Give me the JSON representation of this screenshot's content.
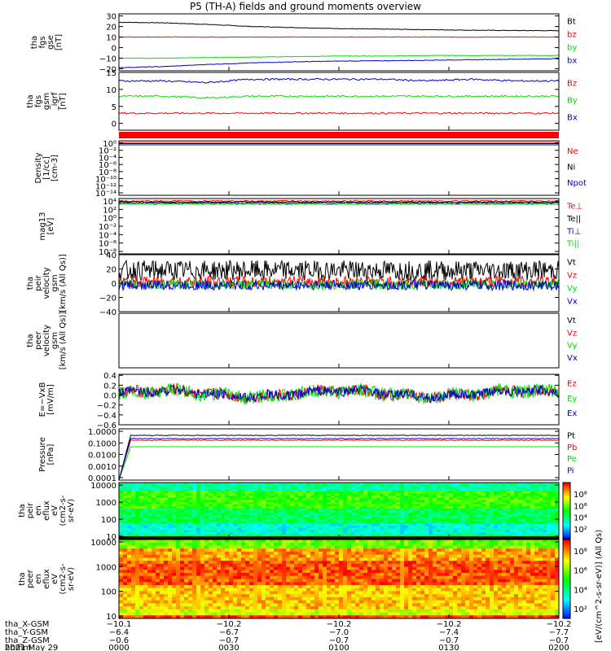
{
  "title": "P5 (TH-A) fields and ground moments overview",
  "colors": {
    "black": "#000000",
    "red": "#ff0000",
    "green": "#00e000",
    "blue": "#0000cc",
    "purple": "#9900aa"
  },
  "chart_data": [
    {
      "type": "line",
      "ylabel": [
        "tha",
        "fgs",
        "gse",
        "[nT]"
      ],
      "ylim": [
        -22,
        32
      ],
      "yticks": [
        "30",
        "20",
        "10",
        "0",
        "−10",
        "−20"
      ],
      "ytick_values": [
        30,
        20,
        10,
        0,
        -10,
        -20
      ],
      "series": [
        {
          "name": "Bt",
          "color": "#000000",
          "values": [
            24,
            23.5,
            22,
            20,
            19,
            18,
            17.5,
            17,
            16.5,
            16.2,
            16
          ]
        },
        {
          "name": "bz",
          "color": "#ff0000",
          "values": [
            10,
            10,
            10,
            10,
            10,
            10,
            10,
            10,
            10,
            10,
            10
          ]
        },
        {
          "name": "by",
          "color": "#00e000",
          "values": [
            -10,
            -10,
            -9.5,
            -9,
            -8.5,
            -8,
            -8,
            -7.5,
            -7.5,
            -7.5,
            -7.5
          ]
        },
        {
          "name": "bx",
          "color": "#0000cc",
          "values": [
            -19,
            -18,
            -16,
            -14.5,
            -13.5,
            -12.8,
            -12.5,
            -12,
            -11.5,
            -11,
            -10.5
          ]
        }
      ]
    },
    {
      "type": "line",
      "ylabel": [
        "tha",
        "fgs",
        "gsm",
        "_igrf",
        "[nT]"
      ],
      "ylim": [
        -2,
        15
      ],
      "yticks": [
        "15",
        "10",
        "5",
        "0"
      ],
      "ytick_values": [
        15,
        10,
        5,
        0
      ],
      "series": [
        {
          "name": "Bz",
          "color": "#ff0000",
          "values": [
            3,
            3,
            3,
            3,
            3,
            3,
            3,
            3,
            3,
            3,
            3
          ]
        },
        {
          "name": "By",
          "color": "#00e000",
          "values": [
            8,
            8,
            7.5,
            8,
            8,
            8,
            8,
            8,
            8,
            8,
            8
          ]
        },
        {
          "name": "Bx",
          "color": "#0000cc",
          "values": [
            12.5,
            12.5,
            12,
            13,
            13,
            13,
            13,
            12.5,
            13,
            12.5,
            12.5
          ]
        }
      ]
    },
    {
      "type": "line",
      "ylabel": [
        "Density",
        "[1/cc]",
        "[cm-3]"
      ],
      "scale": "log",
      "yticks": [
        "10⁰",
        "10⁻²",
        "10⁻⁴",
        "10⁻⁶",
        "10⁻⁸",
        "10⁻¹⁰",
        "10⁻¹²",
        "10⁻¹⁴"
      ],
      "series": [
        {
          "name": "Ne",
          "color": "#ff0000"
        },
        {
          "name": "Ni",
          "color": "#000000"
        },
        {
          "name": "Npot",
          "color": "#0000cc"
        }
      ]
    },
    {
      "type": "line",
      "ylabel": [
        "mag13",
        "[eV]"
      ],
      "scale": "log",
      "yticks": [
        "10⁴",
        "10²",
        "10⁰",
        "10⁻²",
        "10⁻⁴",
        "10⁻⁶",
        "10⁻⁸"
      ],
      "series": [
        {
          "name": "Te⊥",
          "color": "#ff0000"
        },
        {
          "name": "Te||",
          "color": "#000000"
        },
        {
          "name": "Ti⊥",
          "color": "#0000cc"
        },
        {
          "name": "Ti||",
          "color": "#00e000"
        }
      ]
    },
    {
      "type": "line",
      "ylabel": [
        "tha",
        "peir",
        "velocity",
        "gsm",
        "[km/s (All Qs)]"
      ],
      "ylim": [
        -40,
        40
      ],
      "yticks": [
        "40",
        "20",
        "0",
        "−20",
        "−40"
      ],
      "ytick_values": [
        40,
        20,
        0,
        -20,
        -40
      ],
      "series": [
        {
          "name": "Vt",
          "color": "#000000"
        },
        {
          "name": "Vz",
          "color": "#ff0000"
        },
        {
          "name": "Vy",
          "color": "#00e000"
        },
        {
          "name": "Vx",
          "color": "#0000cc"
        }
      ]
    },
    {
      "type": "line",
      "ylabel": [
        "tha",
        "peer",
        "velocity",
        "gsm",
        "[km/s (All Qs)]"
      ],
      "yticks": [],
      "series": [
        {
          "name": "Vt",
          "color": "#000000"
        },
        {
          "name": "Vz",
          "color": "#ff0000"
        },
        {
          "name": "Vy",
          "color": "#00e000"
        },
        {
          "name": "Vx",
          "color": "#0000cc"
        }
      ]
    },
    {
      "type": "line",
      "ylabel": [
        "E=−VxB",
        "[mV/m]"
      ],
      "ylim": [
        -0.6,
        0.42
      ],
      "yticks": [
        "0.4",
        "0.2",
        "0.0",
        "−0.2",
        "−0.4",
        "−0.6"
      ],
      "ytick_values": [
        0.4,
        0.2,
        0,
        -0.2,
        -0.4,
        -0.6
      ],
      "series": [
        {
          "name": "Ez",
          "color": "#ff0000"
        },
        {
          "name": "Ey",
          "color": "#00e000"
        },
        {
          "name": "Ex",
          "color": "#0000cc"
        }
      ]
    },
    {
      "type": "line",
      "ylabel": [
        "Pressure",
        "[nPa]"
      ],
      "scale": "log",
      "yticks": [
        "1.0000",
        "0.1000",
        "0.0100",
        "0.0010",
        "0.0001"
      ],
      "series": [
        {
          "name": "Pt",
          "color": "#000000"
        },
        {
          "name": "Pb",
          "color": "#ff0000"
        },
        {
          "name": "Pe",
          "color": "#00e000"
        },
        {
          "name": "Pi",
          "color": "#0000cc"
        }
      ]
    },
    {
      "type": "heatmap",
      "ylabel": [
        "tha",
        "peir",
        "en",
        "eflux",
        "eV",
        "(cm2-s-",
        "sr-eV)"
      ],
      "scale": "log",
      "yticks": [
        "10000",
        "1000",
        "100",
        "10"
      ],
      "colorbar_ticks": [
        "10⁸",
        "10⁶",
        "10⁴",
        "10²"
      ]
    },
    {
      "type": "heatmap",
      "ylabel": [
        "tha",
        "peer",
        "en",
        "eflux",
        "eV",
        "(cm2-s-",
        "sr-eV)"
      ],
      "scale": "log",
      "yticks": [
        "10000",
        "1000",
        "100",
        "10"
      ],
      "colorbar_ticks": [
        "10⁸",
        "10⁶",
        "10⁴",
        "10²"
      ]
    }
  ],
  "colorbar_label": "[eV/(cm^2-s-sr-eV)] (All Qs)",
  "x_axis": {
    "columns": [
      {
        "x": "−10.1",
        "y": "−6.4",
        "z": "−0.6",
        "time": "0000"
      },
      {
        "x": "−10.2",
        "y": "−6.7",
        "z": "−0.7",
        "time": "0030"
      },
      {
        "x": "−10.2",
        "y": "−7.0",
        "z": "−0.7",
        "time": "0100"
      },
      {
        "x": "−10.2",
        "y": "−7.4",
        "z": "−0.7",
        "time": "0130"
      },
      {
        "x": "−10.2",
        "y": "−7.7",
        "z": "−0.7",
        "time": "0200"
      }
    ],
    "row_labels": [
      "tha_X-GSM",
      "tha_Y-GSM",
      "tha_Z-GSM",
      "hhmm"
    ],
    "date": "2021 May 29"
  }
}
